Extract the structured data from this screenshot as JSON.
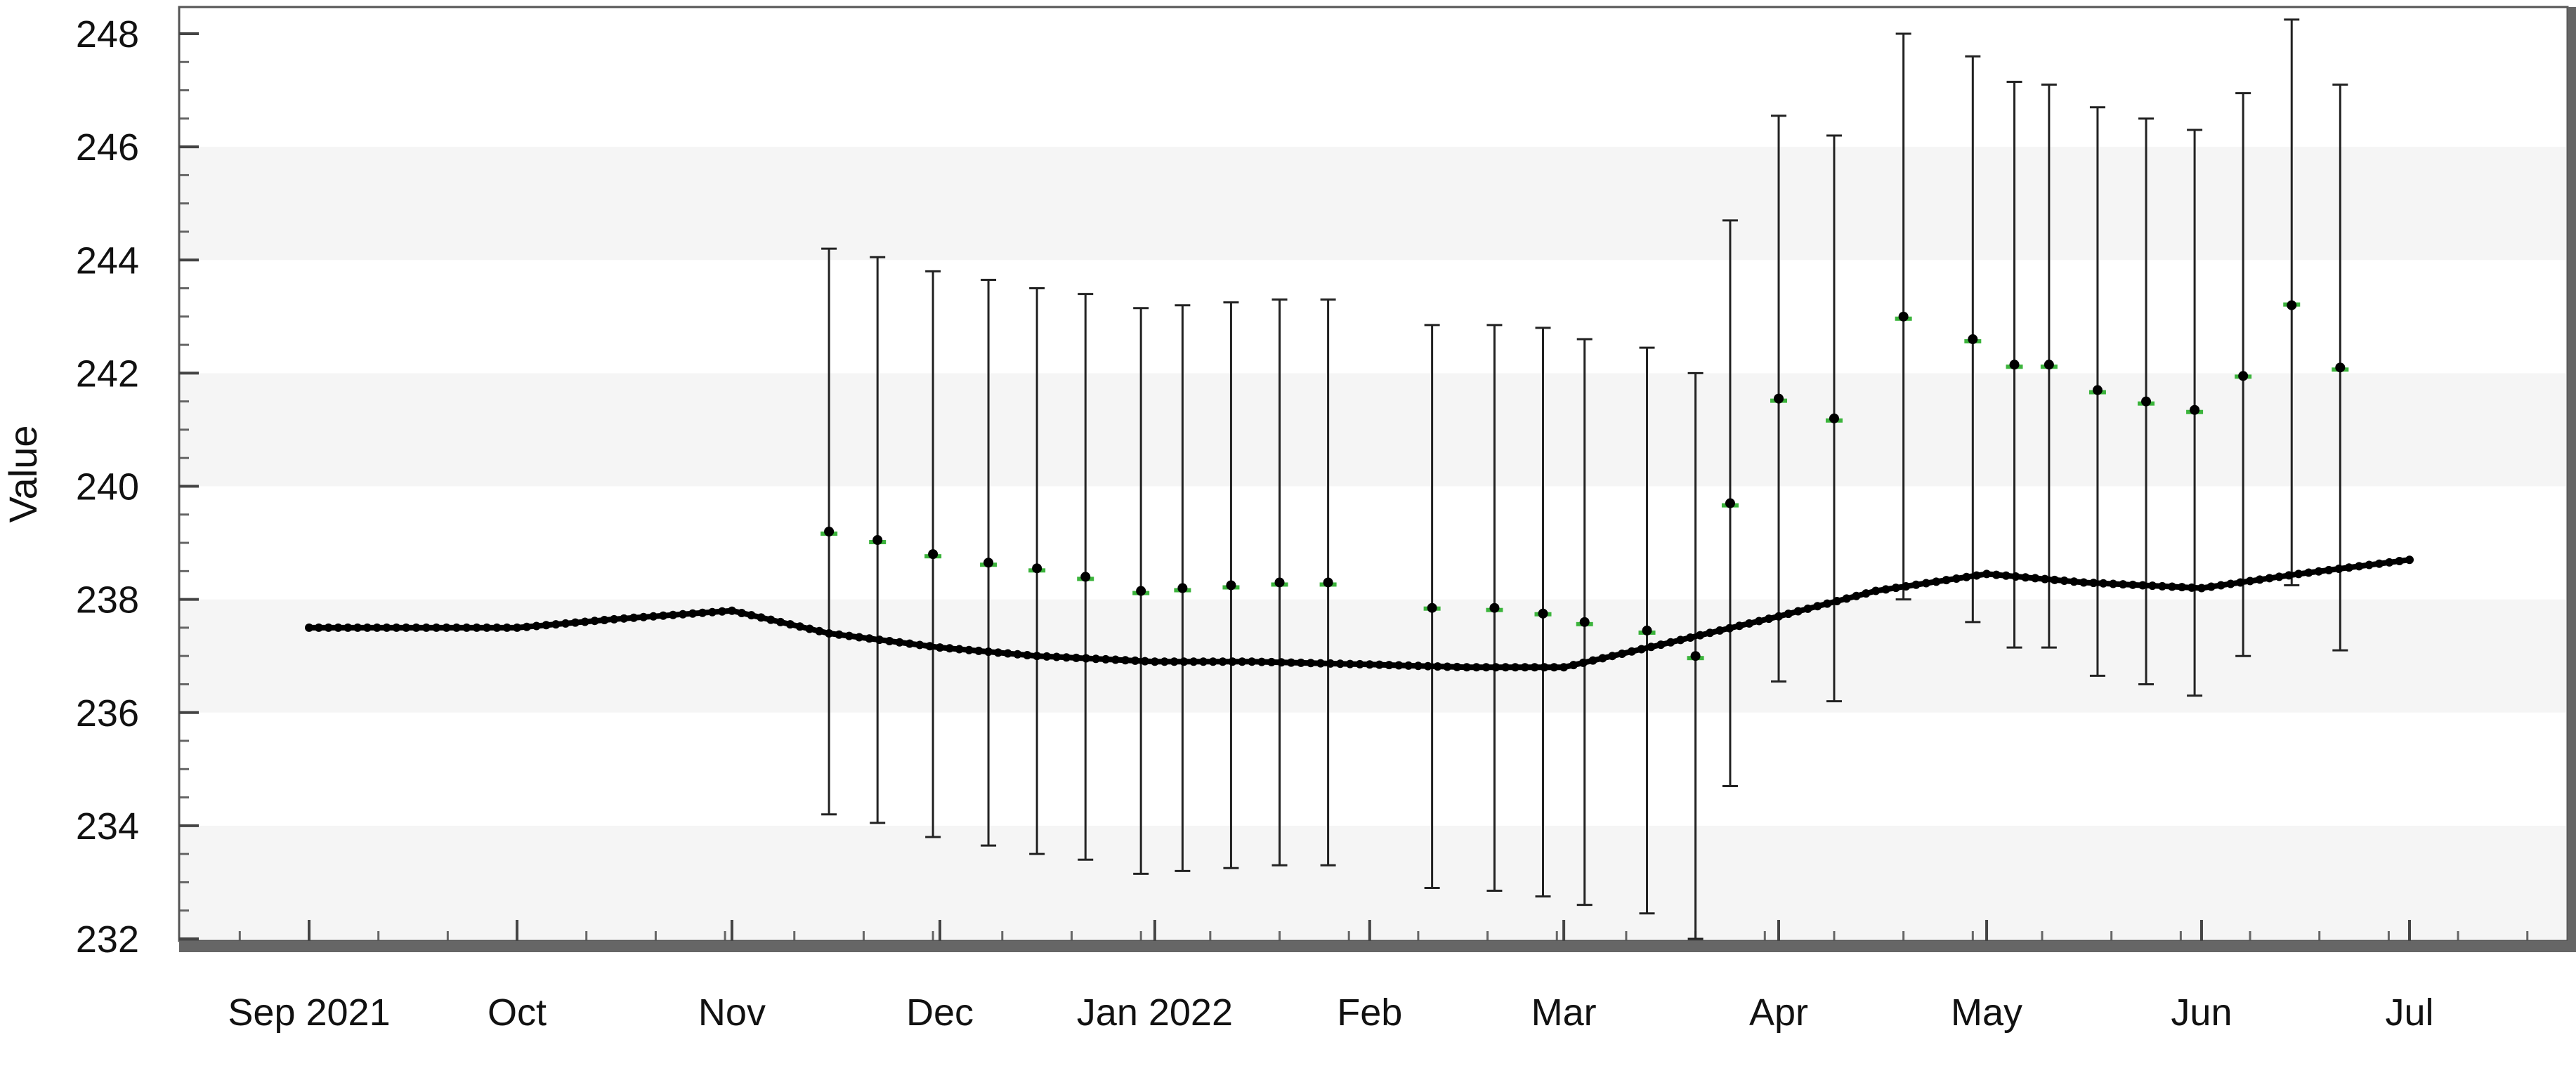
{
  "chart_data": {
    "type": "line",
    "title": "",
    "xlabel": "",
    "ylabel": "Value",
    "ylim": [
      232,
      248
    ],
    "y_ticks": [
      232,
      234,
      236,
      238,
      240,
      242,
      244,
      246,
      248
    ],
    "x_range": [
      "2021-08-19",
      "2022-07-22"
    ],
    "x_ticks": [
      {
        "date": "2021-09-01",
        "label": "Sep 2021"
      },
      {
        "date": "2021-10-01",
        "label": "Oct"
      },
      {
        "date": "2021-11-01",
        "label": "Nov"
      },
      {
        "date": "2021-12-01",
        "label": "Dec"
      },
      {
        "date": "2022-01-01",
        "label": "Jan 2022"
      },
      {
        "date": "2022-02-01",
        "label": "Feb"
      },
      {
        "date": "2022-03-01",
        "label": "Mar"
      },
      {
        "date": "2022-04-01",
        "label": "Apr"
      },
      {
        "date": "2022-05-01",
        "label": "May"
      },
      {
        "date": "2022-06-01",
        "label": "Jun"
      },
      {
        "date": "2022-07-01",
        "label": "Jul"
      }
    ],
    "grid": "horizontal alternating bands",
    "legend": "none",
    "series": [
      {
        "kind": "line",
        "color": "#000000",
        "points": [
          [
            "2021-09-01",
            237.5
          ],
          [
            "2021-09-15",
            237.5
          ],
          [
            "2021-10-01",
            237.5
          ],
          [
            "2021-10-15",
            237.65
          ],
          [
            "2021-11-01",
            237.8
          ],
          [
            "2021-11-15",
            237.4
          ],
          [
            "2021-12-01",
            237.15
          ],
          [
            "2021-12-15",
            237.0
          ],
          [
            "2022-01-01",
            236.9
          ],
          [
            "2022-01-15",
            236.9
          ],
          [
            "2022-02-01",
            236.85
          ],
          [
            "2022-02-15",
            236.8
          ],
          [
            "2022-03-01",
            236.8
          ],
          [
            "2022-03-15",
            237.2
          ],
          [
            "2022-04-01",
            237.7
          ],
          [
            "2022-04-15",
            238.15
          ],
          [
            "2022-05-01",
            238.45
          ],
          [
            "2022-05-15",
            238.3
          ],
          [
            "2022-06-01",
            238.2
          ],
          [
            "2022-06-15",
            238.45
          ],
          [
            "2022-07-01",
            238.7
          ]
        ]
      },
      {
        "kind": "forecast-with-error-bars",
        "color": "#3cb43c",
        "points": [
          {
            "x": "2021-11-15",
            "y": 239.2,
            "low": 234.2,
            "high": 244.2
          },
          {
            "x": "2021-11-22",
            "y": 239.05,
            "low": 234.05,
            "high": 244.05
          },
          {
            "x": "2021-11-30",
            "y": 238.8,
            "low": 233.8,
            "high": 243.8
          },
          {
            "x": "2021-12-08",
            "y": 238.65,
            "low": 233.65,
            "high": 243.65
          },
          {
            "x": "2021-12-15",
            "y": 238.55,
            "low": 233.5,
            "high": 243.5
          },
          {
            "x": "2021-12-22",
            "y": 238.4,
            "low": 233.4,
            "high": 243.4
          },
          {
            "x": "2021-12-30",
            "y": 238.15,
            "low": 233.15,
            "high": 243.15
          },
          {
            "x": "2022-01-05",
            "y": 238.2,
            "low": 233.2,
            "high": 243.2
          },
          {
            "x": "2022-01-12",
            "y": 238.25,
            "low": 233.25,
            "high": 243.25
          },
          {
            "x": "2022-01-19",
            "y": 238.3,
            "low": 233.3,
            "high": 243.3
          },
          {
            "x": "2022-01-26",
            "y": 238.3,
            "low": 233.3,
            "high": 243.3
          },
          {
            "x": "2022-02-10",
            "y": 237.85,
            "low": 232.9,
            "high": 242.85
          },
          {
            "x": "2022-02-19",
            "y": 237.85,
            "low": 232.85,
            "high": 242.85
          },
          {
            "x": "2022-02-26",
            "y": 237.75,
            "low": 232.75,
            "high": 242.8
          },
          {
            "x": "2022-03-04",
            "y": 237.6,
            "low": 232.6,
            "high": 242.6
          },
          {
            "x": "2022-03-13",
            "y": 237.45,
            "low": 232.45,
            "high": 242.45
          },
          {
            "x": "2022-03-20",
            "y": 237.0,
            "low": 232.0,
            "high": 242.0
          },
          {
            "x": "2022-03-25",
            "y": 239.7,
            "low": 234.7,
            "high": 244.7
          },
          {
            "x": "2022-04-01",
            "y": 241.55,
            "low": 236.55,
            "high": 246.55
          },
          {
            "x": "2022-04-09",
            "y": 241.2,
            "low": 236.2,
            "high": 246.2
          },
          {
            "x": "2022-04-19",
            "y": 243.0,
            "low": 238.0,
            "high": 248.0
          },
          {
            "x": "2022-04-29",
            "y": 242.6,
            "low": 237.6,
            "high": 247.6
          },
          {
            "x": "2022-05-05",
            "y": 242.15,
            "low": 237.15,
            "high": 247.15
          },
          {
            "x": "2022-05-10",
            "y": 242.15,
            "low": 237.15,
            "high": 247.1
          },
          {
            "x": "2022-05-17",
            "y": 241.7,
            "low": 236.65,
            "high": 246.7
          },
          {
            "x": "2022-05-24",
            "y": 241.5,
            "low": 236.5,
            "high": 246.5
          },
          {
            "x": "2022-05-31",
            "y": 241.35,
            "low": 236.3,
            "high": 246.3
          },
          {
            "x": "2022-06-07",
            "y": 241.95,
            "low": 237.0,
            "high": 246.95
          },
          {
            "x": "2022-06-14",
            "y": 243.2,
            "low": 238.25,
            "high": 248.25
          },
          {
            "x": "2022-06-21",
            "y": 242.1,
            "low": 237.1,
            "high": 247.1
          }
        ]
      }
    ]
  }
}
